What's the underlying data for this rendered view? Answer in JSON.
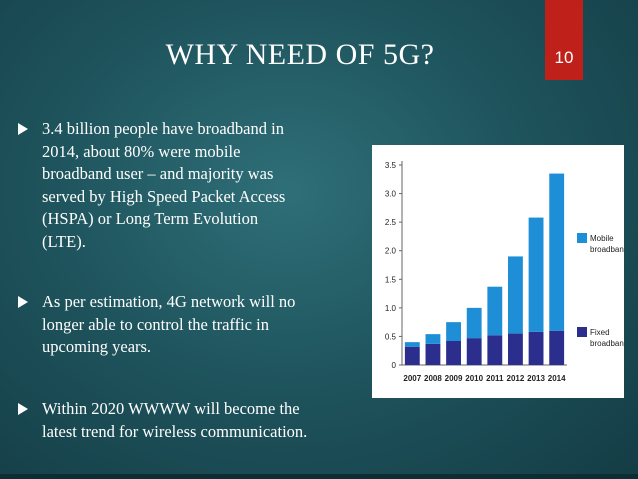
{
  "slide": {
    "title": "WHY NEED OF 5G?",
    "number": "10"
  },
  "bullets": [
    {
      "text": "3.4 billion people have broadband in\n2014, about 80%  were mobile\nbroadband user – and majority was\nserved by High Speed Packet Access\n(HSPA) or  Long Term Evolution\n(LTE)."
    },
    {
      "text": "As per estimation, 4G network will no\nlonger able to control the traffic in\nupcoming years."
    },
    {
      "text": "Within 2020 WWWW will become the\nlatest trend for wireless communication."
    }
  ],
  "colors": {
    "accent": "#c0201a",
    "mobile": "#1e8fd6",
    "fixed": "#2b2e8c"
  },
  "chart_data": {
    "type": "bar",
    "stacked": true,
    "categories": [
      "2007",
      "2008",
      "2009",
      "2010",
      "2011",
      "2012",
      "2013",
      "2014"
    ],
    "series": [
      {
        "name": "Fixed\nbroadband",
        "color": "#2b2e8c",
        "values": [
          0.32,
          0.37,
          0.42,
          0.47,
          0.52,
          0.55,
          0.58,
          0.6
        ]
      },
      {
        "name": "Mobile\nbroadband",
        "color": "#1e8fd6",
        "values": [
          0.08,
          0.17,
          0.33,
          0.53,
          0.85,
          1.35,
          2.0,
          2.75
        ]
      }
    ],
    "ylim": [
      0,
      3.5
    ],
    "yticks": [
      "0",
      "0.5",
      "1.0",
      "1.5",
      "2.0",
      "2.5",
      "3.0",
      "3.5"
    ],
    "grid": false,
    "legend": "right"
  }
}
